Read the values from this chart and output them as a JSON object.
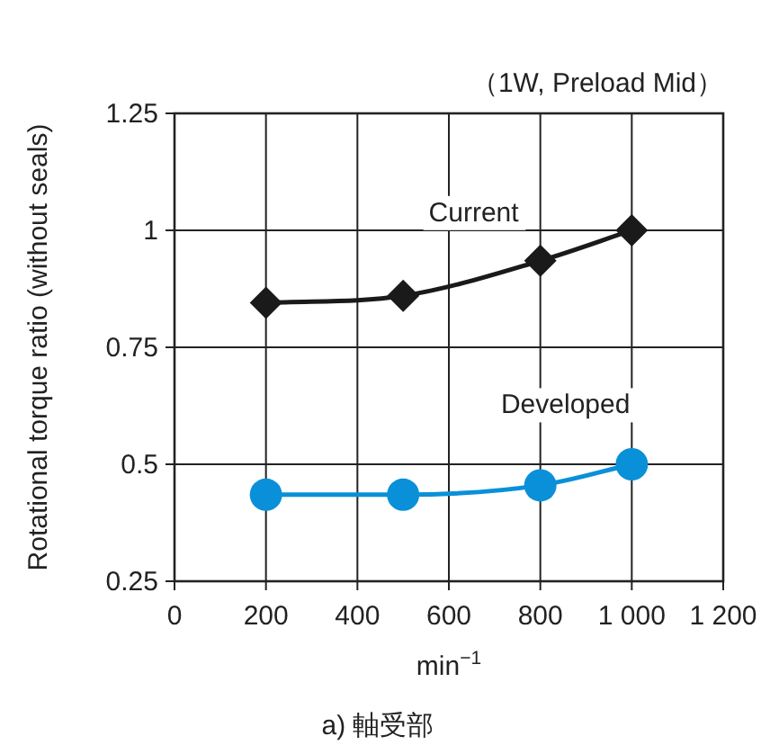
{
  "chart_data": {
    "type": "line",
    "title": "（1W, Preload Mid）",
    "xlabel": "min$^{−1}$",
    "ylabel": "Rotational torque ratio (without seals)",
    "x": [
      200,
      500,
      800,
      1000
    ],
    "series": [
      {
        "name": "Current",
        "color": "#1a1a1a",
        "marker": "diamond",
        "values": [
          0.845,
          0.86,
          0.935,
          1.0
        ]
      },
      {
        "name": "Developed",
        "color": "#0a90d8",
        "marker": "circle",
        "values": [
          0.435,
          0.435,
          0.455,
          0.5
        ]
      }
    ],
    "xlim": [
      0,
      1200
    ],
    "xticks": [
      0,
      200,
      400,
      600,
      800,
      {
        "value": 1000,
        "label": "1 000"
      },
      {
        "value": 1200,
        "label": "1 200"
      }
    ],
    "ylim": [
      0.25,
      1.25
    ],
    "yticks": [
      0.25,
      0.5,
      0.75,
      1,
      1.25
    ],
    "grid": true,
    "annotations": [
      "a) 軸受部"
    ]
  }
}
